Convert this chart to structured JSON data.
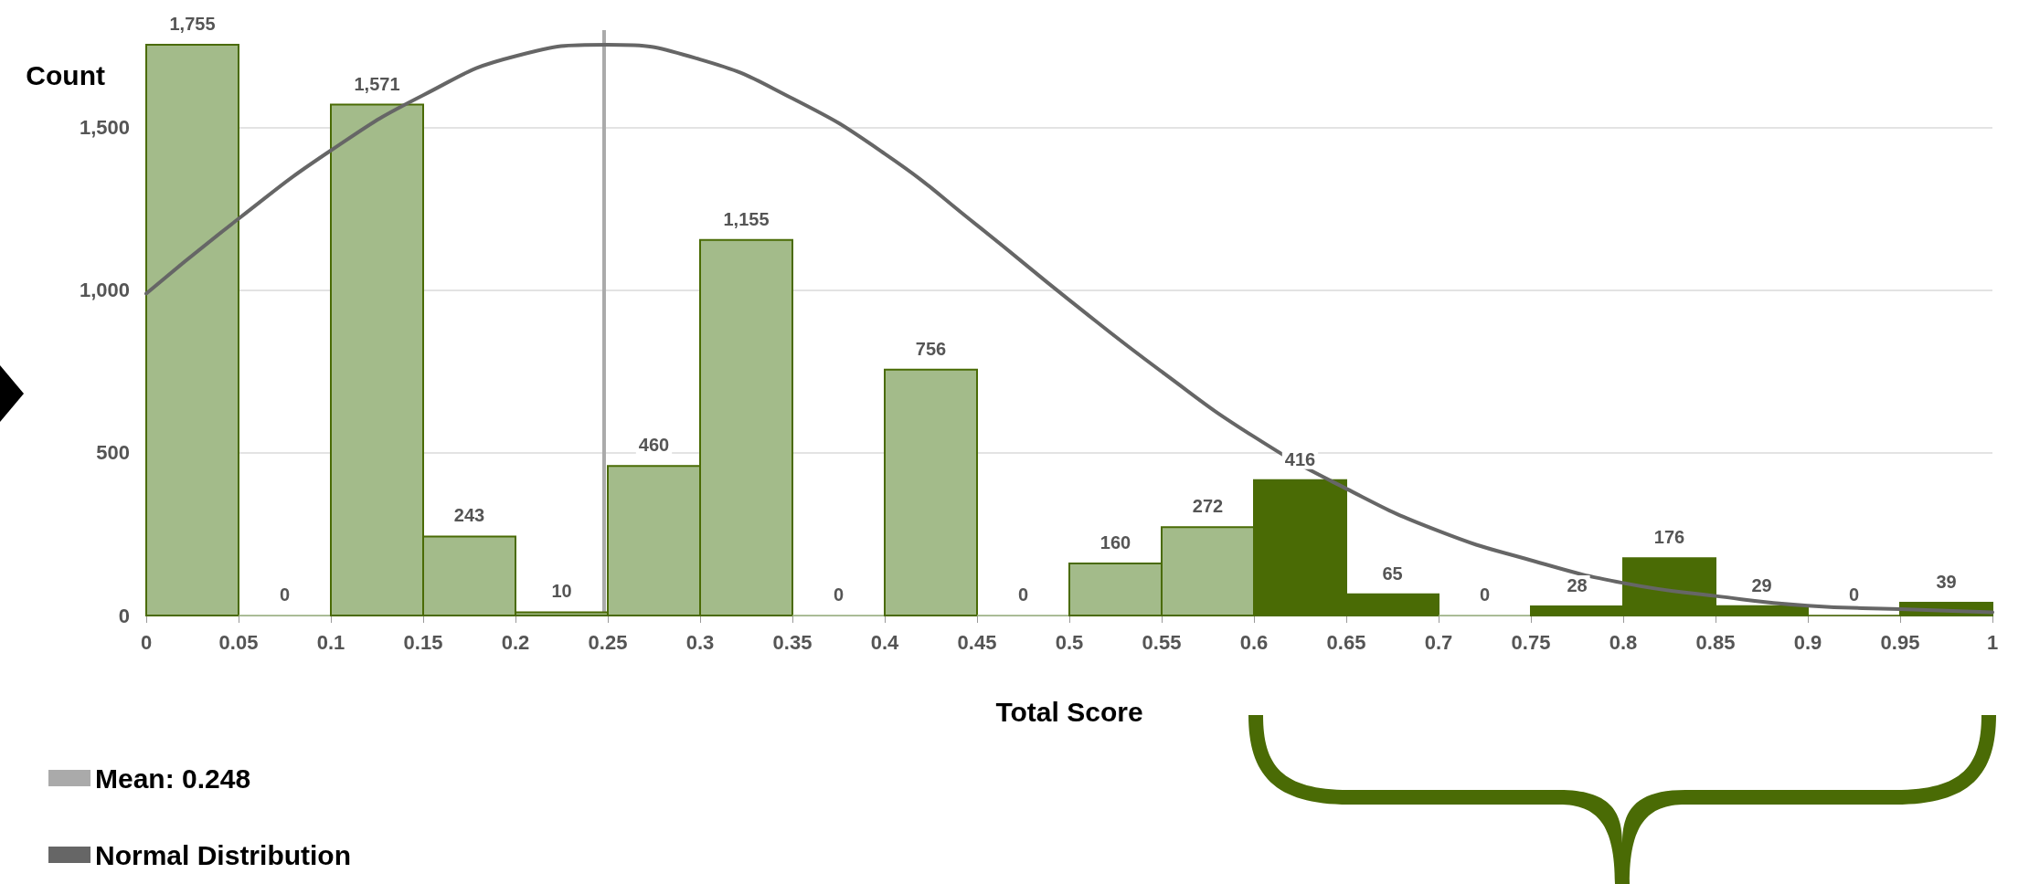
{
  "chart_data": {
    "type": "histogram",
    "xlabel": "Total Score",
    "ylabel": "Count",
    "bins": [
      0,
      0.05,
      0.1,
      0.15,
      0.2,
      0.25,
      0.3,
      0.35,
      0.4,
      0.45,
      0.5,
      0.55,
      0.6,
      0.65,
      0.7,
      0.75,
      0.8,
      0.85,
      0.9,
      0.95,
      1
    ],
    "values": [
      1755,
      0,
      1571,
      243,
      10,
      460,
      1155,
      0,
      756,
      0,
      160,
      272,
      416,
      65,
      0,
      28,
      176,
      29,
      0,
      39
    ],
    "colors": [
      "#a3bb8a",
      "#a3bb8a",
      "#a3bb8a",
      "#a3bb8a",
      "#a3bb8a",
      "#a3bb8a",
      "#a3bb8a",
      "#a3bb8a",
      "#a3bb8a",
      "#a3bb8a",
      "#a3bb8a",
      "#a3bb8a",
      "#4a6b05",
      "#4a6b05",
      "#a3bb8a",
      "#4a6b05",
      "#4a6b05",
      "#4a6b05",
      "#4a6b05",
      "#4a6b05"
    ],
    "value_labels": [
      "1,755",
      "0",
      "1,571",
      "243",
      "10",
      "460",
      "1,155",
      "0",
      "756",
      "0",
      "160",
      "272",
      "416",
      "65",
      "0",
      "28",
      "176",
      "29",
      "0",
      "39"
    ],
    "series": [
      {
        "type": "line",
        "name": "Normal Distribution",
        "color": "#666666",
        "x": [
          0,
          0.05,
          0.1,
          0.15,
          0.2,
          0.25,
          0.3,
          0.35,
          0.4,
          0.45,
          0.5,
          0.55,
          0.6,
          0.65,
          0.7,
          0.75,
          0.8,
          0.85,
          0.9,
          0.95,
          1
        ],
        "values": [
          990,
          1220,
          1430,
          1600,
          1720,
          1755,
          1710,
          1590,
          1420,
          1200,
          970,
          750,
          550,
          390,
          260,
          170,
          100,
          60,
          30,
          20,
          10
        ]
      }
    ],
    "ref_lines": [
      {
        "axis": "x",
        "value": 0.248,
        "label": "Mean: 0.248",
        "color": "#aaaaaa"
      }
    ],
    "xlim": [
      0,
      1
    ],
    "xticks": [
      0,
      0.05,
      0.1,
      0.15,
      0.2,
      0.25,
      0.3,
      0.35,
      0.4,
      0.45,
      0.5,
      0.55,
      0.6,
      0.65,
      0.7,
      0.75,
      0.8,
      0.85,
      0.9,
      0.95,
      1
    ],
    "ylim": [
      0,
      1800
    ],
    "yticks": [
      0,
      500,
      {
        "value": 1000,
        "label": "1,000"
      },
      {
        "value": 1500,
        "label": "1,500"
      }
    ],
    "grid": "y",
    "legend": "bottom left",
    "marker": "none"
  }
}
